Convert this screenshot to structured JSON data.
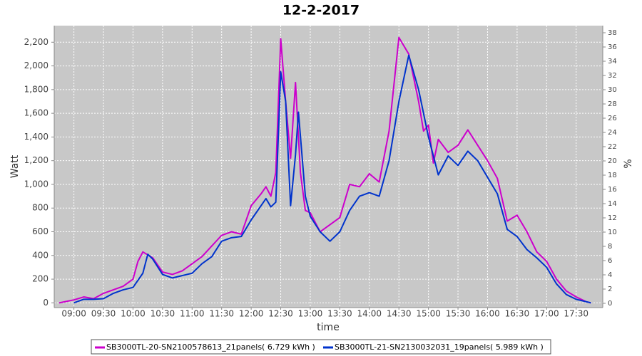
{
  "chart_data": {
    "type": "line",
    "title": "12-2-2017",
    "x_label": "time",
    "y_label": "Watt",
    "y2_label": "%",
    "xlim": [
      "08:40",
      "17:57"
    ],
    "xticks": [
      "09:00",
      "09:30",
      "10:00",
      "10:30",
      "11:00",
      "11:30",
      "12:00",
      "12:30",
      "13:00",
      "13:30",
      "14:00",
      "14:30",
      "15:00",
      "15:30",
      "16:00",
      "16:30",
      "17:00",
      "17:30"
    ],
    "ylim": [
      -40,
      2340
    ],
    "yticks": [
      0,
      200,
      400,
      600,
      800,
      {
        "value": 1000,
        "label": "1,000"
      },
      {
        "value": 1200,
        "label": "1,200"
      },
      {
        "value": 1400,
        "label": "1,400"
      },
      {
        "value": 1600,
        "label": "1,600"
      },
      {
        "value": 1800,
        "label": "1,800"
      },
      {
        "value": 2000,
        "label": "2,000"
      },
      {
        "value": 2200,
        "label": "2,200"
      }
    ],
    "y2lim": [
      -0.6,
      39
    ],
    "y2ticks": [
      0,
      2,
      4,
      6,
      8,
      10,
      12,
      14,
      16,
      18,
      20,
      22,
      24,
      26,
      28,
      30,
      32,
      34,
      36,
      38
    ],
    "grid": true,
    "series": [
      {
        "name": "SB3000TL-20-SN2100578613_21panels( 6.729 kWh )",
        "color": "#cc00cc",
        "x": [
          "08:45",
          "09:00",
          "09:10",
          "09:20",
          "09:30",
          "09:40",
          "09:50",
          "10:00",
          "10:05",
          "10:10",
          "10:20",
          "10:30",
          "10:40",
          "10:50",
          "11:00",
          "11:10",
          "11:20",
          "11:30",
          "11:40",
          "11:50",
          "12:00",
          "12:10",
          "12:15",
          "12:20",
          "12:25",
          "12:30",
          "12:35",
          "12:40",
          "12:45",
          "12:50",
          "12:55",
          "13:00",
          "13:10",
          "13:20",
          "13:30",
          "13:40",
          "13:50",
          "14:00",
          "14:10",
          "14:20",
          "14:30",
          "14:40",
          "14:50",
          "14:55",
          "15:00",
          "15:05",
          "15:10",
          "15:20",
          "15:30",
          "15:40",
          "15:50",
          "16:00",
          "16:10",
          "16:20",
          "16:30",
          "16:40",
          "16:50",
          "17:00",
          "17:10",
          "17:20",
          "17:30",
          "17:40",
          "17:45"
        ],
        "values": [
          0,
          25,
          50,
          35,
          80,
          110,
          140,
          200,
          350,
          430,
          380,
          260,
          240,
          270,
          330,
          390,
          480,
          570,
          600,
          580,
          820,
          920,
          980,
          900,
          1100,
          2230,
          1700,
          1220,
          1860,
          1100,
          780,
          760,
          600,
          660,
          720,
          1000,
          980,
          1090,
          1020,
          1450,
          2240,
          2100,
          1700,
          1450,
          1500,
          1180,
          1380,
          1270,
          1330,
          1460,
          1330,
          1200,
          1050,
          690,
          740,
          600,
          430,
          350,
          200,
          100,
          50,
          10,
          0
        ]
      },
      {
        "name": "SB3000TL-21-SN2130032031_19panels( 5.989 kWh )",
        "color": "#0033cc",
        "x": [
          "09:00",
          "09:10",
          "09:20",
          "09:30",
          "09:40",
          "09:50",
          "10:00",
          "10:10",
          "10:15",
          "10:20",
          "10:30",
          "10:40",
          "10:50",
          "11:00",
          "11:10",
          "11:20",
          "11:30",
          "11:40",
          "11:50",
          "12:00",
          "12:10",
          "12:15",
          "12:20",
          "12:25",
          "12:30",
          "12:35",
          "12:40",
          "12:45",
          "12:48",
          "12:55",
          "13:00",
          "13:10",
          "13:20",
          "13:30",
          "13:40",
          "13:50",
          "14:00",
          "14:10",
          "14:20",
          "14:30",
          "14:40",
          "14:50",
          "15:00",
          "15:10",
          "15:20",
          "15:30",
          "15:40",
          "15:50",
          "16:00",
          "16:10",
          "16:20",
          "16:30",
          "16:40",
          "16:50",
          "17:00",
          "17:10",
          "17:20",
          "17:30",
          "17:40",
          "17:45"
        ],
        "values": [
          0,
          30,
          30,
          35,
          80,
          110,
          130,
          250,
          410,
          370,
          240,
          210,
          230,
          250,
          330,
          390,
          520,
          550,
          560,
          700,
          820,
          880,
          810,
          850,
          1950,
          1700,
          820,
          1250,
          1610,
          900,
          730,
          600,
          520,
          600,
          780,
          900,
          930,
          900,
          1200,
          1700,
          2090,
          1800,
          1400,
          1080,
          1240,
          1160,
          1280,
          1200,
          1060,
          920,
          620,
          560,
          450,
          380,
          300,
          160,
          70,
          30,
          10,
          0
        ]
      }
    ]
  }
}
